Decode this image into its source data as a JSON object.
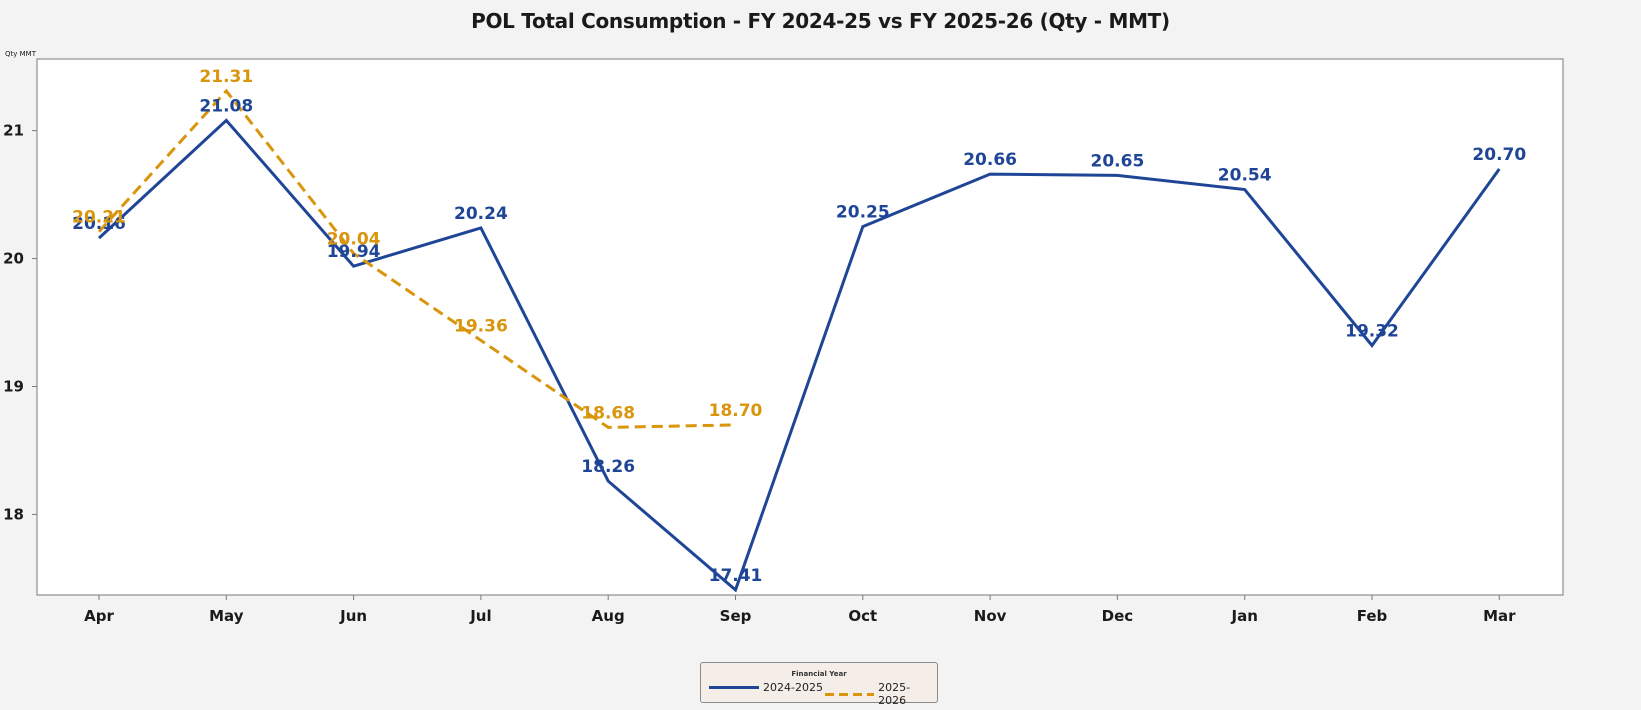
{
  "chart_data": {
    "type": "line",
    "title": "POL Total Consumption - FY 2024-25 vs FY 2025-26 (Qty - MMT)",
    "xlabel": "",
    "ylabel": "Qty MMT",
    "categories": [
      "Apr",
      "May",
      "Jun",
      "Jul",
      "Aug",
      "Sep",
      "Oct",
      "Nov",
      "Dec",
      "Jan",
      "Feb",
      "Mar"
    ],
    "ylim": [
      17.37,
      21.56
    ],
    "yticks": [
      18,
      19,
      20,
      21
    ],
    "grid": false,
    "legend": {
      "title": "Financial Year",
      "position": "bottom-center"
    },
    "series": [
      {
        "name": "2024-2025",
        "color": "#1f4696",
        "style": "solid",
        "values": [
          20.16,
          21.08,
          19.94,
          20.24,
          18.26,
          17.41,
          20.25,
          20.66,
          20.65,
          20.54,
          19.32,
          20.7
        ],
        "labels": [
          "20.16",
          "21.08",
          "19.94",
          "20.24",
          "18.26",
          "17.41",
          "20.25",
          "20.66",
          "20.65",
          "20.54",
          "19.32",
          "20.70"
        ]
      },
      {
        "name": "2025-2026",
        "color": "#d9950b",
        "style": "dashed",
        "values": [
          20.21,
          21.31,
          20.04,
          19.36,
          18.68,
          18.7,
          null,
          null,
          null,
          null,
          null,
          null
        ],
        "labels": [
          "20.21",
          "21.31",
          "20.04",
          "19.36",
          "18.68",
          "18.70",
          null,
          null,
          null,
          null,
          null,
          null
        ]
      }
    ]
  }
}
